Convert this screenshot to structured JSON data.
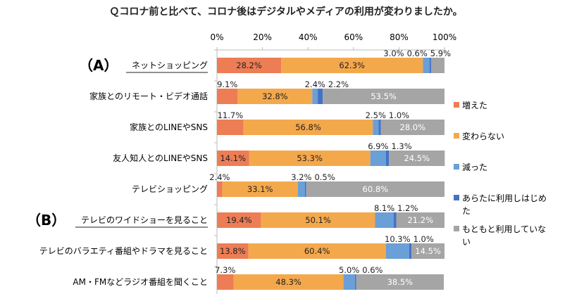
{
  "title": "Ｑコロナ前と比べて、コロナ後はデジタルやメディアの利用が変わりましたか。",
  "chart_data": {
    "type": "bar",
    "orientation": "horizontal",
    "stacked": "percent",
    "title": "Ｑコロナ前と比べて、コロナ後はデジタルやメディアの利用が変わりましたか。",
    "xlim": [
      0,
      100
    ],
    "x_ticks": [
      "0%",
      "20%",
      "40%",
      "60%",
      "80%",
      "100%"
    ],
    "tick_position": "top",
    "grid": false,
    "legend_position": "right",
    "group_labels": [
      {
        "label": "（A）",
        "category_index": 0
      },
      {
        "label": "（B）",
        "category_index": 5
      }
    ],
    "underlined_categories": [
      0,
      5
    ],
    "categories": [
      "ネットショッピング",
      "家族とのリモート・ビデオ通話",
      "家族とのLINEやSNS",
      "友人知人とのLINEやSNS",
      "テレビショッピング",
      "テレビのワイドショーを見ること",
      "テレビのバラエティ番組やドラマを見ること",
      "AM・FMなどラジオ番組を聞くこと"
    ],
    "series": [
      {
        "name": "増えた",
        "color": "#ED7D55",
        "label_color": "#222",
        "values": [
          28.2,
          9.1,
          11.7,
          14.1,
          2.4,
          19.4,
          13.8,
          7.3
        ]
      },
      {
        "name": "変わらない",
        "color": "#F4A84C",
        "label_color": "#222",
        "values": [
          62.3,
          32.8,
          56.8,
          53.3,
          33.1,
          50.1,
          60.4,
          48.3
        ]
      },
      {
        "name": "減った",
        "color": "#6A9FD8",
        "label_color": "#222",
        "values": [
          3.0,
          2.4,
          2.5,
          6.9,
          3.2,
          8.1,
          10.3,
          5.0
        ]
      },
      {
        "name": "あらたに利用しはじめた",
        "color": "#4472C4",
        "label_color": "#fff",
        "values": [
          0.6,
          2.2,
          1.0,
          1.3,
          0.5,
          1.2,
          1.0,
          0.6
        ]
      },
      {
        "name": "もともと利用していない",
        "color": "#A5A5A5",
        "label_color": "#fff",
        "values": [
          5.9,
          53.5,
          28.0,
          24.5,
          60.8,
          21.2,
          14.5,
          38.5
        ]
      }
    ]
  }
}
